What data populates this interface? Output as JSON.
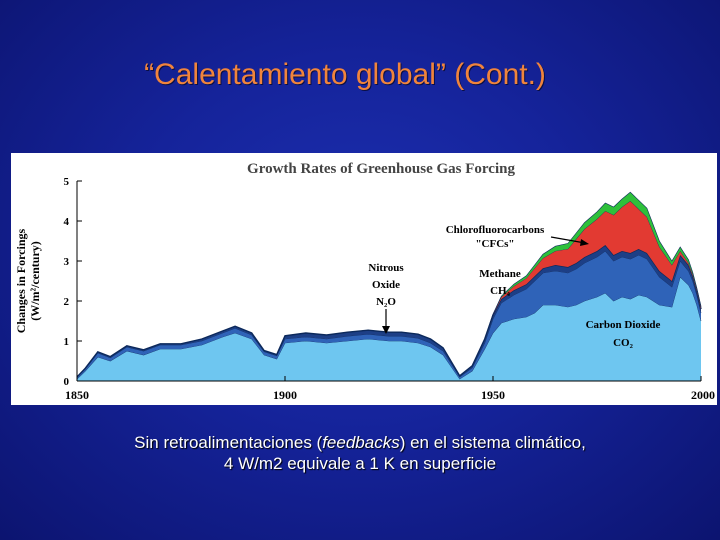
{
  "slide": {
    "title": "“Calentamiento global” (Cont.)",
    "caption_line1_pre": "Sin retroalimentaciones (",
    "caption_line1_em": "feedbacks",
    "caption_line1_post": ") en el sistema climático,",
    "caption_line2": "4 W/m2 equivale a 1 K en superficie"
  },
  "colors": {
    "co2": "#6ec6f0",
    "ch4": "#2f63b8",
    "n2o": "#1d3f86",
    "cfc": "#e23a32",
    "green": "#2ec03a",
    "axis": "#000000"
  },
  "chart_data": {
    "type": "area",
    "title": "Growth Rates of Greenhouse Gas Forcing",
    "ylabel_line1": "Changes in Forcings",
    "ylabel_line2": "(W/m²/century)",
    "xlim": [
      1850,
      2000
    ],
    "ylim": [
      0,
      5
    ],
    "xticks": [
      "1850",
      "1900",
      "1950",
      "2000"
    ],
    "yticks": [
      "0",
      "1",
      "2",
      "3",
      "4",
      "5"
    ],
    "annotations": {
      "cfc": [
        "Chlorofluorocarbons",
        "\"CFCs\""
      ],
      "ch4": [
        "Methane",
        "CH₄"
      ],
      "n2o": [
        "Nitrous",
        "Oxide",
        "N₂O"
      ],
      "co2": [
        "Carbon Dioxide",
        "CO₂"
      ]
    },
    "x": [
      1850,
      1852,
      1855,
      1858,
      1862,
      1866,
      1870,
      1875,
      1880,
      1885,
      1888,
      1892,
      1895,
      1898,
      1900,
      1905,
      1910,
      1915,
      1920,
      1925,
      1928,
      1932,
      1935,
      1938,
      1940,
      1942,
      1945,
      1948,
      1950,
      1952,
      1955,
      1958,
      1960,
      1962,
      1965,
      1968,
      1970,
      1972,
      1975,
      1977,
      1979,
      1981,
      1983,
      1985,
      1987,
      1990,
      1993,
      1995,
      1997,
      1998,
      1999,
      2000
    ],
    "series": [
      {
        "name": "CO2",
        "values": [
          0.05,
          0.25,
          0.6,
          0.5,
          0.75,
          0.65,
          0.8,
          0.8,
          0.9,
          1.1,
          1.2,
          1.05,
          0.65,
          0.55,
          0.95,
          1.0,
          0.95,
          1.0,
          1.05,
          1.0,
          1.0,
          0.95,
          0.85,
          0.65,
          0.35,
          0.05,
          0.25,
          0.8,
          1.2,
          1.45,
          1.55,
          1.6,
          1.7,
          1.9,
          1.9,
          1.85,
          1.9,
          2.0,
          2.1,
          2.2,
          2.0,
          2.1,
          2.05,
          2.15,
          2.1,
          1.9,
          1.85,
          2.6,
          2.4,
          2.2,
          1.9,
          1.5
        ]
      },
      {
        "name": "CH4",
        "values": [
          0.05,
          0.05,
          0.1,
          0.08,
          0.1,
          0.1,
          0.1,
          0.1,
          0.1,
          0.1,
          0.12,
          0.1,
          0.08,
          0.08,
          0.1,
          0.1,
          0.1,
          0.12,
          0.12,
          0.12,
          0.12,
          0.12,
          0.1,
          0.1,
          0.08,
          0.05,
          0.08,
          0.15,
          0.35,
          0.5,
          0.6,
          0.7,
          0.8,
          0.8,
          0.85,
          0.85,
          0.9,
          0.95,
          1.0,
          1.05,
          1.0,
          1.0,
          1.0,
          1.0,
          0.95,
          0.7,
          0.5,
          0.4,
          0.35,
          0.3,
          0.25,
          0.2
        ]
      },
      {
        "name": "N2O",
        "values": [
          0.0,
          0.02,
          0.03,
          0.03,
          0.03,
          0.03,
          0.03,
          0.03,
          0.05,
          0.05,
          0.05,
          0.05,
          0.03,
          0.03,
          0.08,
          0.1,
          0.1,
          0.1,
          0.1,
          0.1,
          0.1,
          0.1,
          0.1,
          0.08,
          0.05,
          0.03,
          0.05,
          0.1,
          0.1,
          0.1,
          0.12,
          0.12,
          0.12,
          0.12,
          0.15,
          0.15,
          0.15,
          0.15,
          0.15,
          0.15,
          0.15,
          0.15,
          0.15,
          0.15,
          0.15,
          0.15,
          0.15,
          0.15,
          0.15,
          0.12,
          0.1,
          0.1
        ]
      },
      {
        "name": "CFCs",
        "values": [
          0,
          0,
          0,
          0,
          0,
          0,
          0,
          0,
          0,
          0,
          0,
          0,
          0,
          0,
          0,
          0,
          0,
          0,
          0,
          0,
          0,
          0,
          0,
          0,
          0,
          0,
          0,
          0,
          0.02,
          0.05,
          0.1,
          0.15,
          0.2,
          0.25,
          0.35,
          0.45,
          0.6,
          0.7,
          0.8,
          0.85,
          1.0,
          1.1,
          1.3,
          1.0,
          0.9,
          0.6,
          0.4,
          0.1,
          0.05,
          0.05,
          0.05,
          0.05
        ]
      },
      {
        "name": "Other",
        "values": [
          0,
          0,
          0,
          0,
          0,
          0,
          0,
          0,
          0,
          0,
          0,
          0,
          0,
          0,
          0,
          0,
          0,
          0,
          0,
          0,
          0,
          0,
          0,
          0,
          0,
          0,
          0,
          0,
          0,
          0.02,
          0.05,
          0.06,
          0.08,
          0.1,
          0.12,
          0.14,
          0.15,
          0.16,
          0.18,
          0.2,
          0.2,
          0.2,
          0.22,
          0.22,
          0.22,
          0.15,
          0.1,
          0.1,
          0.08,
          0.05,
          0.03,
          0.02
        ]
      }
    ]
  }
}
